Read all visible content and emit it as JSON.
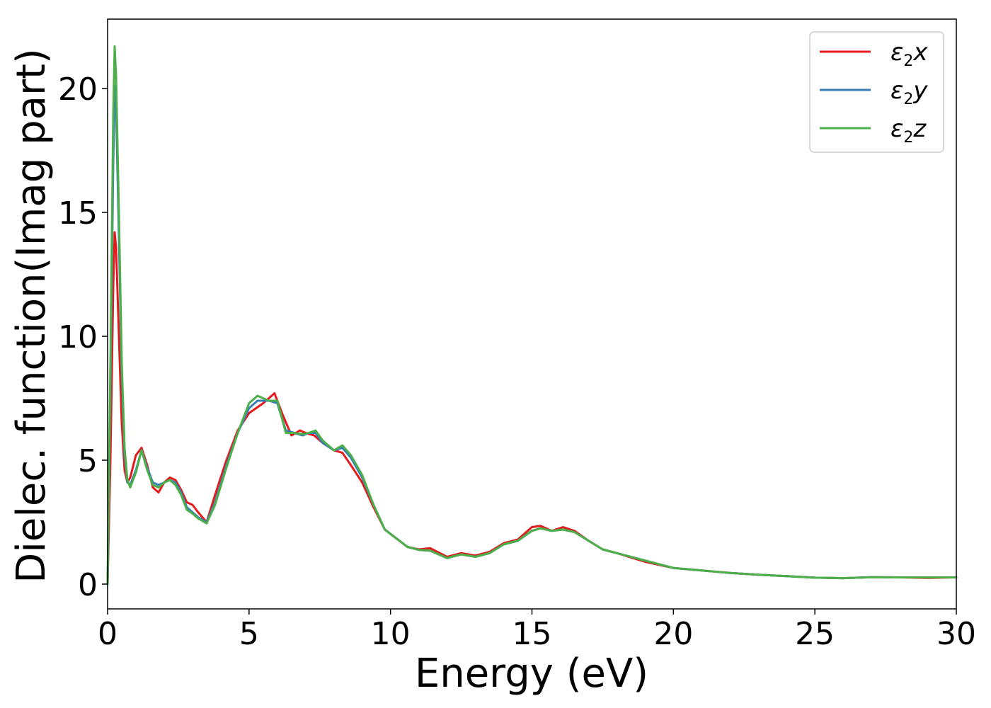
{
  "chart_data": {
    "type": "line",
    "xlabel": "Energy (eV)",
    "ylabel": "Dielec. function(Imag part)",
    "xlim": [
      0,
      30
    ],
    "ylim": [
      -1,
      22.8
    ],
    "xticks": [
      0,
      5,
      10,
      15,
      20,
      25,
      30
    ],
    "yticks": [
      0,
      5,
      10,
      15,
      20
    ],
    "xtick_labels": [
      "0",
      "5",
      "10",
      "15",
      "20",
      "25",
      "30"
    ],
    "ytick_labels": [
      "0",
      "5",
      "10",
      "15",
      "20"
    ],
    "grid": false,
    "legend_position": "top-right",
    "series": [
      {
        "name": "ε2x",
        "legend_main": "ε",
        "legend_sub": "2",
        "legend_var": "x",
        "color": "#e41a1c",
        "x": [
          0,
          0.1,
          0.2,
          0.25,
          0.3,
          0.4,
          0.5,
          0.6,
          0.7,
          0.8,
          1.0,
          1.2,
          1.4,
          1.6,
          1.8,
          2.0,
          2.2,
          2.4,
          2.6,
          2.8,
          3.0,
          3.2,
          3.5,
          3.8,
          4.2,
          4.6,
          5.0,
          5.5,
          5.9,
          6.2,
          6.5,
          6.8,
          7.0,
          7.3,
          7.6,
          8.0,
          8.3,
          8.6,
          9.0,
          9.4,
          9.8,
          10.2,
          10.6,
          11.0,
          11.4,
          12.0,
          12.5,
          13.0,
          13.5,
          14.0,
          14.5,
          15.0,
          15.3,
          15.7,
          16.1,
          16.5,
          17.0,
          17.5,
          18.0,
          19.0,
          20.0,
          21.0,
          22.0,
          23.0,
          24.0,
          25.0,
          26.0,
          27.0,
          28.0,
          29.0,
          30.0
        ],
        "y": [
          0,
          5,
          12,
          14.2,
          13.6,
          10,
          6.5,
          4.6,
          4.1,
          4.3,
          5.2,
          5.5,
          4.8,
          3.9,
          3.7,
          4.1,
          4.3,
          4.2,
          3.8,
          3.3,
          3.2,
          2.9,
          2.5,
          3.6,
          5.0,
          6.2,
          6.9,
          7.3,
          7.7,
          6.8,
          6.0,
          6.2,
          6.1,
          6.0,
          5.7,
          5.4,
          5.3,
          4.8,
          4.1,
          3.1,
          2.2,
          1.85,
          1.5,
          1.4,
          1.45,
          1.1,
          1.25,
          1.15,
          1.3,
          1.65,
          1.8,
          2.3,
          2.35,
          2.15,
          2.3,
          2.15,
          1.75,
          1.4,
          1.25,
          0.9,
          0.65,
          0.55,
          0.45,
          0.38,
          0.32,
          0.26,
          0.24,
          0.28,
          0.27,
          0.25,
          0.27
        ]
      },
      {
        "name": "ε2y",
        "legend_main": "ε",
        "legend_sub": "2",
        "legend_var": "y",
        "color": "#377eb8",
        "x": [
          0,
          0.1,
          0.2,
          0.25,
          0.3,
          0.4,
          0.5,
          0.6,
          0.7,
          0.8,
          1.0,
          1.2,
          1.4,
          1.6,
          1.8,
          2.0,
          2.2,
          2.4,
          2.6,
          2.8,
          3.0,
          3.2,
          3.5,
          3.8,
          4.2,
          4.6,
          5.0,
          5.3,
          5.7,
          6.0,
          6.3,
          6.6,
          6.9,
          7.1,
          7.35,
          7.6,
          8.0,
          8.3,
          8.6,
          9.0,
          9.4,
          9.8,
          10.2,
          10.6,
          11.0,
          11.4,
          12.0,
          12.5,
          13.0,
          13.5,
          14.0,
          14.5,
          15.0,
          15.3,
          15.7,
          16.1,
          16.5,
          17.0,
          17.5,
          18.0,
          19.0,
          20.0,
          21.0,
          22.0,
          23.0,
          24.0,
          25.0,
          26.0,
          27.0,
          28.0,
          29.0,
          30.0
        ],
        "y": [
          0,
          8,
          17,
          20.1,
          19.2,
          14,
          8.5,
          5.2,
          4.1,
          4.0,
          4.6,
          5.4,
          4.7,
          4.1,
          4.0,
          4.1,
          4.2,
          4.1,
          3.7,
          3.1,
          2.9,
          2.7,
          2.5,
          3.3,
          4.8,
          6.1,
          7.1,
          7.4,
          7.4,
          7.3,
          6.2,
          6.1,
          6.0,
          6.1,
          6.1,
          5.7,
          5.4,
          5.5,
          5.1,
          4.3,
          3.2,
          2.2,
          1.85,
          1.5,
          1.38,
          1.35,
          1.05,
          1.2,
          1.1,
          1.25,
          1.6,
          1.75,
          2.15,
          2.25,
          2.15,
          2.2,
          2.1,
          1.75,
          1.4,
          1.25,
          0.95,
          0.65,
          0.55,
          0.45,
          0.38,
          0.32,
          0.26,
          0.24,
          0.28,
          0.27,
          0.27,
          0.27
        ]
      },
      {
        "name": "ε2z",
        "legend_main": "ε",
        "legend_sub": "2",
        "legend_var": "z",
        "color": "#4daf4a",
        "x": [
          0,
          0.1,
          0.2,
          0.25,
          0.3,
          0.4,
          0.5,
          0.6,
          0.7,
          0.8,
          1.0,
          1.2,
          1.4,
          1.6,
          1.8,
          2.0,
          2.2,
          2.4,
          2.6,
          2.8,
          3.0,
          3.2,
          3.5,
          3.8,
          4.2,
          4.6,
          5.0,
          5.3,
          5.7,
          6.0,
          6.3,
          6.6,
          6.9,
          7.1,
          7.35,
          7.6,
          8.0,
          8.3,
          8.6,
          9.0,
          9.4,
          9.8,
          10.2,
          10.6,
          11.0,
          11.4,
          12.0,
          12.5,
          13.0,
          13.5,
          14.0,
          14.5,
          15.0,
          15.3,
          15.7,
          16.1,
          16.5,
          17.0,
          17.5,
          18.0,
          19.0,
          20.0,
          21.0,
          22.0,
          23.0,
          24.0,
          25.0,
          26.0,
          27.0,
          28.0,
          29.0,
          30.0
        ],
        "y": [
          0,
          9,
          19,
          21.7,
          20.5,
          15,
          9.0,
          5.5,
          4.2,
          3.9,
          4.5,
          5.4,
          4.6,
          4.0,
          3.9,
          4.1,
          4.2,
          4.0,
          3.6,
          3.0,
          2.85,
          2.65,
          2.45,
          3.2,
          4.7,
          6.1,
          7.3,
          7.6,
          7.4,
          7.4,
          6.1,
          6.1,
          6.05,
          6.1,
          6.2,
          5.8,
          5.4,
          5.6,
          5.2,
          4.4,
          3.2,
          2.2,
          1.85,
          1.5,
          1.38,
          1.35,
          1.05,
          1.2,
          1.1,
          1.25,
          1.6,
          1.75,
          2.15,
          2.25,
          2.15,
          2.2,
          2.1,
          1.75,
          1.4,
          1.25,
          0.95,
          0.65,
          0.55,
          0.45,
          0.38,
          0.32,
          0.26,
          0.24,
          0.28,
          0.27,
          0.27,
          0.27
        ]
      }
    ]
  }
}
